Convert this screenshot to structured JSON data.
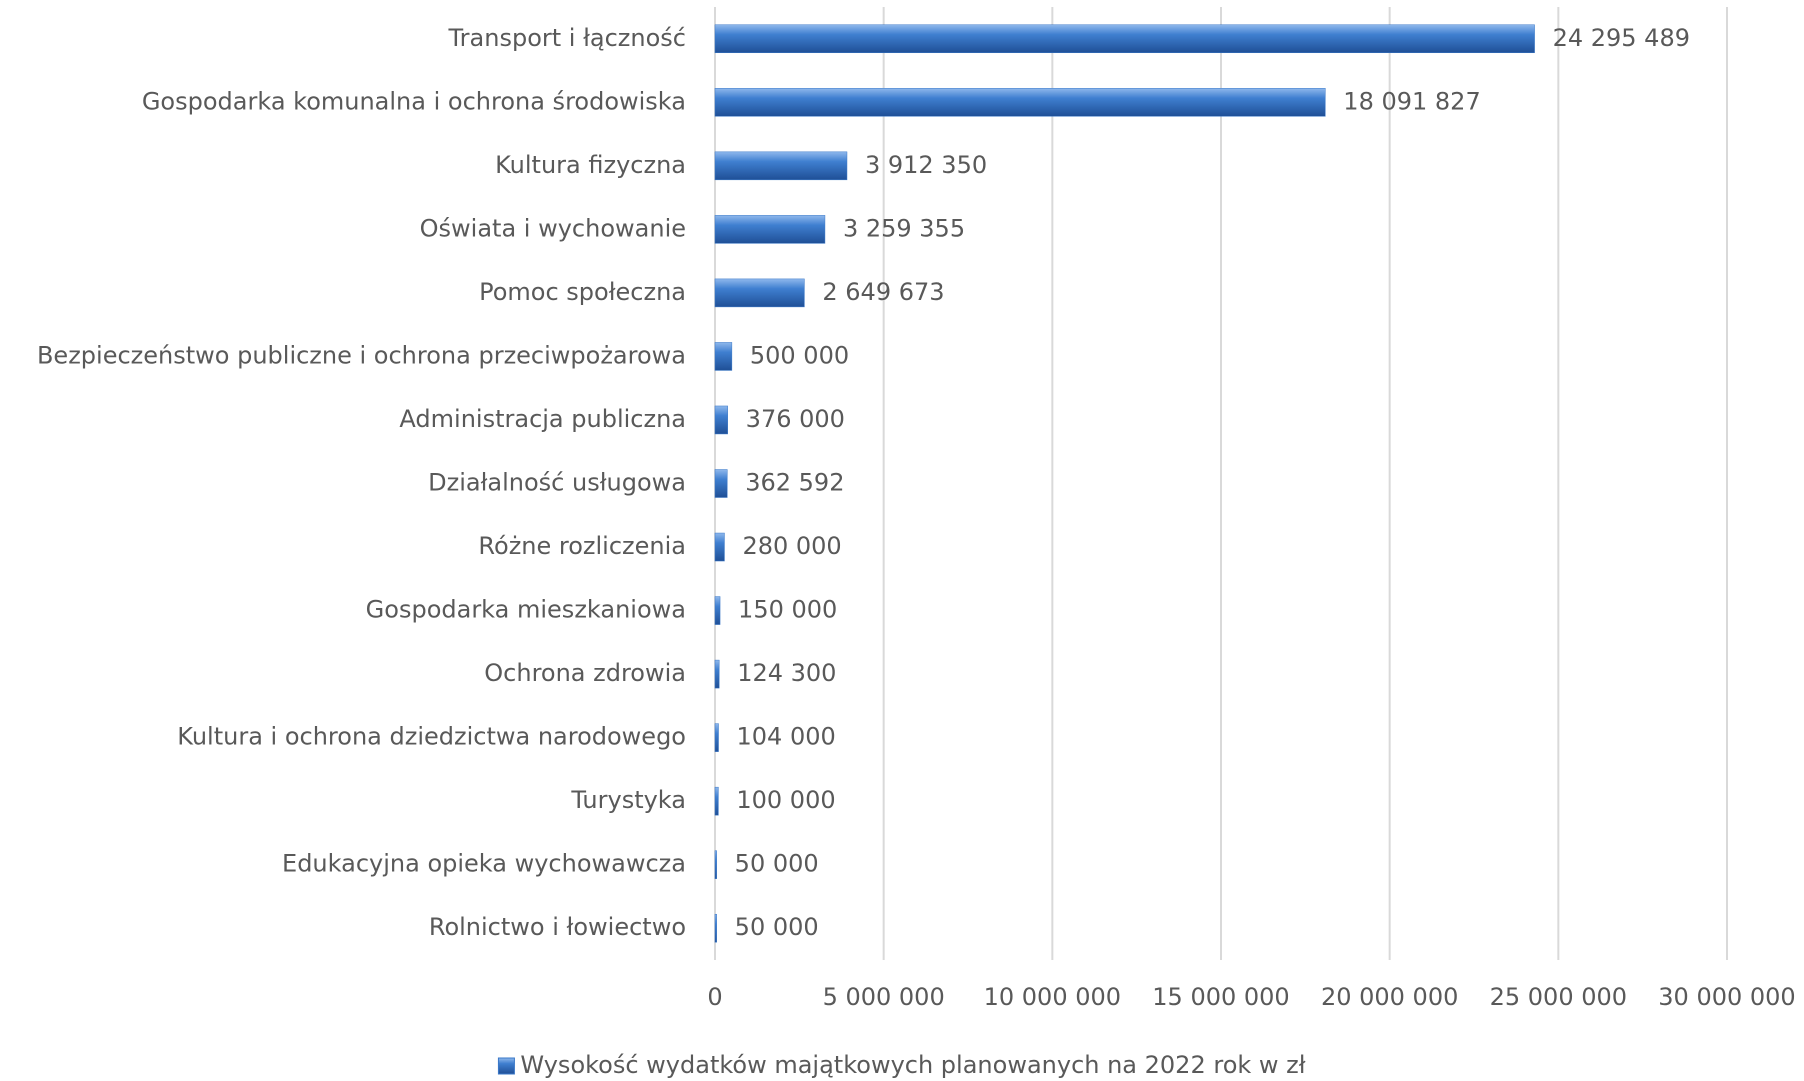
{
  "chart_data": {
    "type": "bar",
    "orientation": "horizontal",
    "categories": [
      "Transport i łączność",
      "Gospodarka komunalna i ochrona środowiska",
      "Kultura fizyczna",
      "Oświata i wychowanie",
      "Pomoc społeczna",
      "Bezpieczeństwo publiczne i ochrona przeciwpożarowa",
      "Administracja publiczna",
      "Działalność usługowa",
      "Różne rozliczenia",
      "Gospodarka mieszkaniowa",
      "Ochrona zdrowia",
      "Kultura i ochrona dziedzictwa narodowego",
      "Turystyka",
      "Edukacyjna opieka wychowawcza",
      "Rolnictwo i łowiectwo"
    ],
    "series": [
      {
        "name": "Wysokość wydatków majątkowych planowanych na 2022 rok w zł",
        "color": "#3a78c8",
        "values": [
          24295489,
          18091827,
          3912350,
          3259355,
          2649673,
          500000,
          376000,
          362592,
          280000,
          150000,
          124300,
          104000,
          100000,
          50000,
          50000
        ],
        "value_labels": [
          "24 295 489",
          "18 091 827",
          "3 912 350",
          "3 259 355",
          "2 649 673",
          "500 000",
          "376 000",
          "362 592",
          "280 000",
          "150 000",
          "124 300",
          "104 000",
          "100 000",
          "50 000",
          "50 000"
        ]
      }
    ],
    "xlim": [
      0,
      30000000
    ],
    "xticks": [
      0,
      {
        "value": 5000000,
        "label": "5 000 000"
      },
      {
        "value": 10000000,
        "label": "10 000 000"
      },
      {
        "value": 15000000,
        "label": "15 000 000"
      },
      {
        "value": 20000000,
        "label": "20 000 000"
      },
      {
        "value": 25000000,
        "label": "25 000 000"
      },
      {
        "value": 30000000,
        "label": "30 000 000"
      }
    ],
    "grid": true,
    "legend": "bottom"
  }
}
